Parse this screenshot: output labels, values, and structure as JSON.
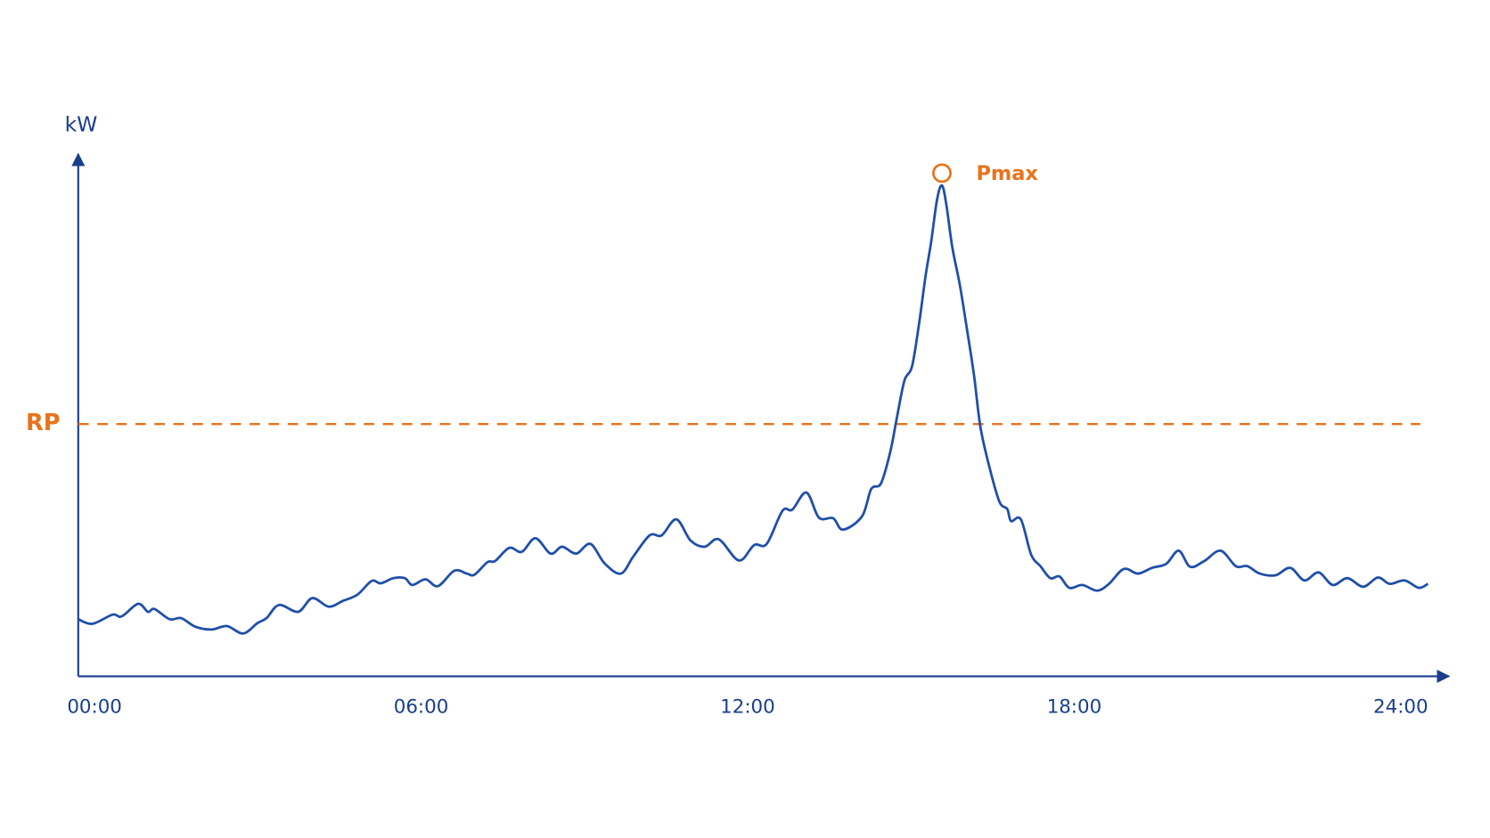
{
  "chart_data": {
    "type": "line",
    "y_label": "kW",
    "xlim": [
      -0.3,
      24.5
    ],
    "xticks": [
      {
        "value": 0,
        "label": "00:00"
      },
      {
        "value": 6,
        "label": "06:00"
      },
      {
        "value": 12,
        "label": "12:00"
      },
      {
        "value": 18,
        "label": "18:00"
      },
      {
        "value": 24,
        "label": "24:00"
      }
    ],
    "ylim": [
      0,
      100
    ],
    "reference_line": {
      "label": "RP",
      "value": 44.2,
      "color": "#e8731a"
    },
    "peak_annotation": {
      "label": "Pmax",
      "color": "#e8731a"
    },
    "series": [
      {
        "color": "#1f4fa8",
        "x": [
          -0.3,
          -0.04,
          0.33,
          0.5,
          0.8,
          0.98,
          1.1,
          1.38,
          1.59,
          1.85,
          2.15,
          2.43,
          2.73,
          2.99,
          3.16,
          3.39,
          3.74,
          4.0,
          4.3,
          4.56,
          4.83,
          5.09,
          5.26,
          5.49,
          5.7,
          5.84,
          6.08,
          6.31,
          6.61,
          6.84,
          6.98,
          7.22,
          7.36,
          7.62,
          7.85,
          8.1,
          8.38,
          8.59,
          8.85,
          9.11,
          9.37,
          9.67,
          9.9,
          10.2,
          10.42,
          10.69,
          10.95,
          11.21,
          11.47,
          11.84,
          12.12,
          12.35,
          12.64,
          12.82,
          13.08,
          13.31,
          13.57,
          13.75,
          14.1,
          14.27,
          14.45,
          14.62,
          14.74,
          14.88,
          15.02,
          15.15,
          15.27,
          15.37,
          15.48,
          15.57,
          15.65,
          15.76,
          15.9,
          16.04,
          16.16,
          16.28,
          16.46,
          16.63,
          16.77,
          16.84,
          17.02,
          17.21,
          17.38,
          17.56,
          17.73,
          17.91,
          18.15,
          18.42,
          18.64,
          18.91,
          19.17,
          19.43,
          19.69,
          19.92,
          20.13,
          20.39,
          20.69,
          20.97,
          21.18,
          21.41,
          21.7,
          21.97,
          22.23,
          22.49,
          22.75,
          23.02,
          23.31,
          23.58,
          23.8,
          24.07,
          24.33,
          24.5
        ],
        "values": [
          10.0,
          9.2,
          10.8,
          10.5,
          12.7,
          11.3,
          11.8,
          10.0,
          10.2,
          8.7,
          8.2,
          8.8,
          7.5,
          9.3,
          10.2,
          12.5,
          11.3,
          13.7,
          12.2,
          13.2,
          14.3,
          16.7,
          16.3,
          17.2,
          17.2,
          16.0,
          17.0,
          15.8,
          18.5,
          18.0,
          17.8,
          20.0,
          20.2,
          22.5,
          21.8,
          24.2,
          21.5,
          22.7,
          21.5,
          23.2,
          19.8,
          18.0,
          21.0,
          24.7,
          24.7,
          27.5,
          23.8,
          22.7,
          24.0,
          20.3,
          23.0,
          23.2,
          29.0,
          29.2,
          32.2,
          27.8,
          27.7,
          25.7,
          28.0,
          32.8,
          33.8,
          39.3,
          45.2,
          51.8,
          54.3,
          61.8,
          70.2,
          76.0,
          83.5,
          86.0,
          82.7,
          75.2,
          68.5,
          60.2,
          52.7,
          43.5,
          36.0,
          30.5,
          29.3,
          27.2,
          27.5,
          21.3,
          19.3,
          17.2,
          17.5,
          15.5,
          16.0,
          15.0,
          16.2,
          18.8,
          18.0,
          19.0,
          19.7,
          22.0,
          19.2,
          20.2,
          22.0,
          19.3,
          19.3,
          18.0,
          17.7,
          19.0,
          16.8,
          18.2,
          16.0,
          17.2,
          15.7,
          17.3,
          16.2,
          16.8,
          15.5,
          16.2
        ]
      }
    ]
  }
}
